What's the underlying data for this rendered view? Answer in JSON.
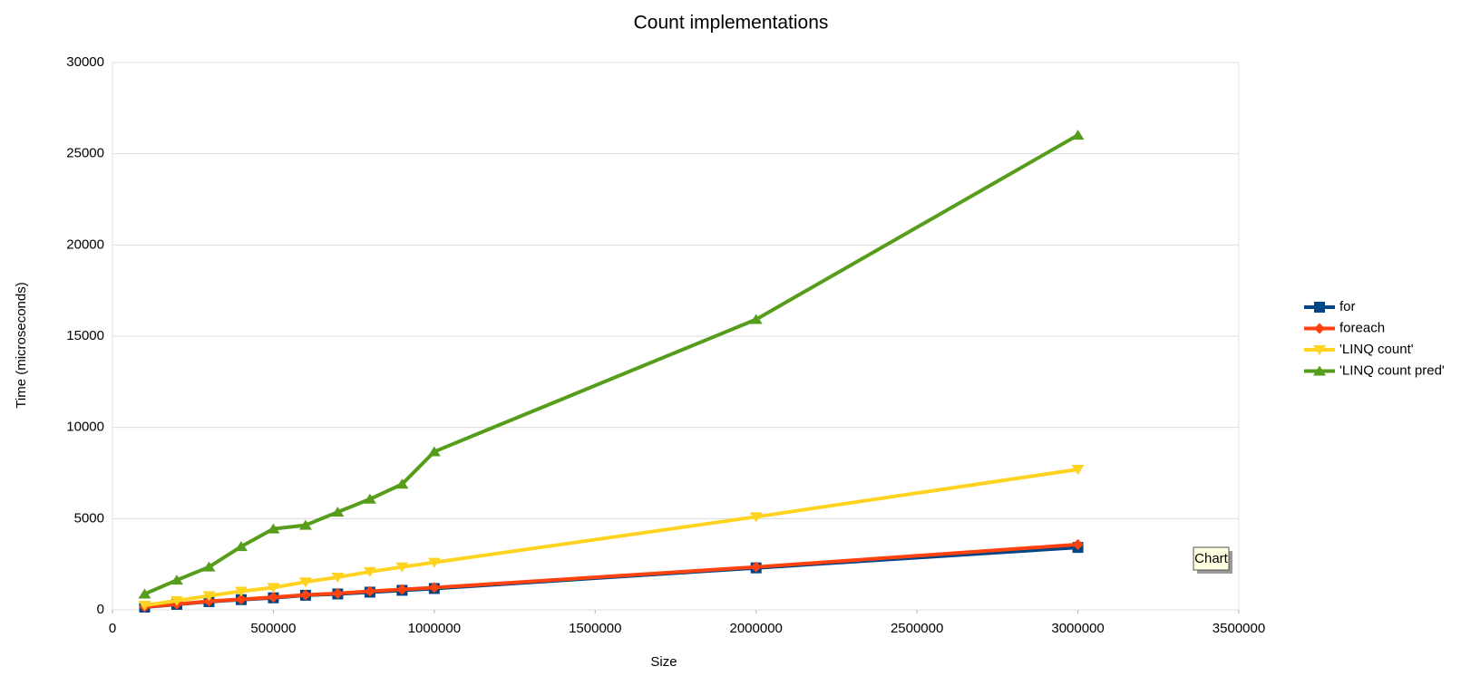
{
  "chart_data": {
    "type": "line",
    "title": "Count implementations",
    "x_label": "Size",
    "y_label": "Time (microseconds)",
    "x": [
      100000,
      200000,
      300000,
      400000,
      500000,
      600000,
      700000,
      800000,
      900000,
      1000000,
      2000000,
      3000000
    ],
    "series": [
      {
        "name": "for",
        "color": "#004586",
        "marker": "square",
        "values": [
          150,
          300,
          450,
          560,
          660,
          800,
          870,
          970,
          1070,
          1170,
          2300,
          3420
        ]
      },
      {
        "name": "foreach",
        "color": "#ff420e",
        "marker": "diamond",
        "values": [
          160,
          310,
          470,
          580,
          690,
          820,
          900,
          1020,
          1120,
          1220,
          2350,
          3580
        ]
      },
      {
        "name": "'LINQ count'",
        "color": "#ffd320",
        "marker": "triangle-down",
        "values": [
          250,
          500,
          770,
          1020,
          1220,
          1530,
          1790,
          2090,
          2350,
          2600,
          5100,
          7700
        ]
      },
      {
        "name": "'LINQ count pred'",
        "color": "#579d1c",
        "marker": "triangle-up",
        "values": [
          870,
          1630,
          2350,
          3470,
          4440,
          4640,
          5360,
          6070,
          6890,
          8670,
          15920,
          26020
        ]
      }
    ],
    "xlim": [
      0,
      3500000
    ],
    "xticks": [
      0,
      500000,
      1000000,
      1500000,
      2000000,
      2500000,
      3000000,
      3500000
    ],
    "ylim": [
      0,
      30000
    ],
    "yticks": [
      0,
      5000,
      10000,
      15000,
      20000,
      25000,
      30000
    ],
    "grid": true,
    "legend": "right",
    "tooltip": "Chart"
  }
}
